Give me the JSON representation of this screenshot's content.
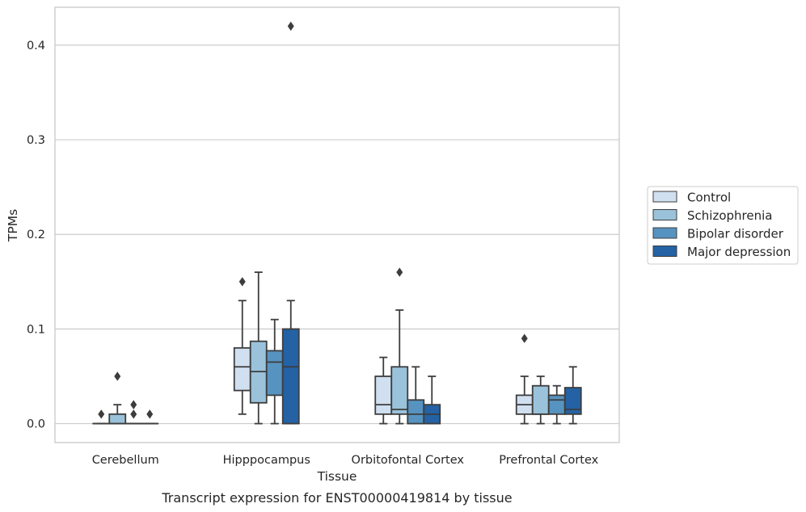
{
  "chart_data": {
    "type": "box",
    "caption": "Transcript expression for ENST00000419814 by tissue",
    "xlabel": "Tissue",
    "ylabel": "TPMs",
    "ylim": [
      -0.02,
      0.44
    ],
    "yticks": [
      0.0,
      0.1,
      0.2,
      0.3,
      0.4
    ],
    "ytick_labels": [
      "0.0",
      "0.1",
      "0.2",
      "0.3",
      "0.4"
    ],
    "grid": "horizontal",
    "legend_position": "right",
    "categories": [
      "Cerebellum",
      "Hipppocampus",
      "Orbitofontal Cortex",
      "Prefrontal Cortex"
    ],
    "series": [
      {
        "name": "Control",
        "color": "#d1e0f0",
        "boxes": [
          {
            "q1": 0.0,
            "median": 0.0,
            "q3": 0.0,
            "whisker_low": 0.0,
            "whisker_high": 0.0,
            "outliers": [
              0.01
            ]
          },
          {
            "q1": 0.035,
            "median": 0.06,
            "q3": 0.08,
            "whisker_low": 0.01,
            "whisker_high": 0.13,
            "outliers": [
              0.15
            ]
          },
          {
            "q1": 0.01,
            "median": 0.02,
            "q3": 0.05,
            "whisker_low": 0.0,
            "whisker_high": 0.07,
            "outliers": []
          },
          {
            "q1": 0.01,
            "median": 0.02,
            "q3": 0.03,
            "whisker_low": 0.0,
            "whisker_high": 0.05,
            "outliers": [
              0.09
            ]
          }
        ]
      },
      {
        "name": "Schizophrenia",
        "color": "#9ac2db",
        "boxes": [
          {
            "q1": 0.0,
            "median": 0.0,
            "q3": 0.01,
            "whisker_low": 0.0,
            "whisker_high": 0.02,
            "outliers": [
              0.05
            ]
          },
          {
            "q1": 0.022,
            "median": 0.055,
            "q3": 0.087,
            "whisker_low": 0.0,
            "whisker_high": 0.16,
            "outliers": []
          },
          {
            "q1": 0.01,
            "median": 0.015,
            "q3": 0.06,
            "whisker_low": 0.0,
            "whisker_high": 0.12,
            "outliers": [
              0.16
            ]
          },
          {
            "q1": 0.01,
            "median": 0.01,
            "q3": 0.04,
            "whisker_low": 0.0,
            "whisker_high": 0.05,
            "outliers": []
          }
        ]
      },
      {
        "name": "Bipolar disorder",
        "color": "#5693c0",
        "boxes": [
          {
            "q1": 0.0,
            "median": 0.0,
            "q3": 0.0,
            "whisker_low": 0.0,
            "whisker_high": 0.0,
            "outliers": [
              0.01,
              0.02
            ]
          },
          {
            "q1": 0.03,
            "median": 0.065,
            "q3": 0.077,
            "whisker_low": 0.0,
            "whisker_high": 0.11,
            "outliers": []
          },
          {
            "q1": 0.0,
            "median": 0.01,
            "q3": 0.025,
            "whisker_low": 0.0,
            "whisker_high": 0.06,
            "outliers": []
          },
          {
            "q1": 0.01,
            "median": 0.025,
            "q3": 0.03,
            "whisker_low": 0.0,
            "whisker_high": 0.04,
            "outliers": []
          }
        ]
      },
      {
        "name": "Major depression",
        "color": "#2462a5",
        "boxes": [
          {
            "q1": 0.0,
            "median": 0.0,
            "q3": 0.0,
            "whisker_low": 0.0,
            "whisker_high": 0.0,
            "outliers": [
              0.01
            ]
          },
          {
            "q1": 0.0,
            "median": 0.06,
            "q3": 0.1,
            "whisker_low": 0.0,
            "whisker_high": 0.13,
            "outliers": [
              0.42
            ]
          },
          {
            "q1": 0.0,
            "median": 0.01,
            "q3": 0.02,
            "whisker_low": 0.0,
            "whisker_high": 0.05,
            "outliers": []
          },
          {
            "q1": 0.01,
            "median": 0.015,
            "q3": 0.038,
            "whisker_low": 0.0,
            "whisker_high": 0.06,
            "outliers": []
          }
        ]
      }
    ]
  }
}
